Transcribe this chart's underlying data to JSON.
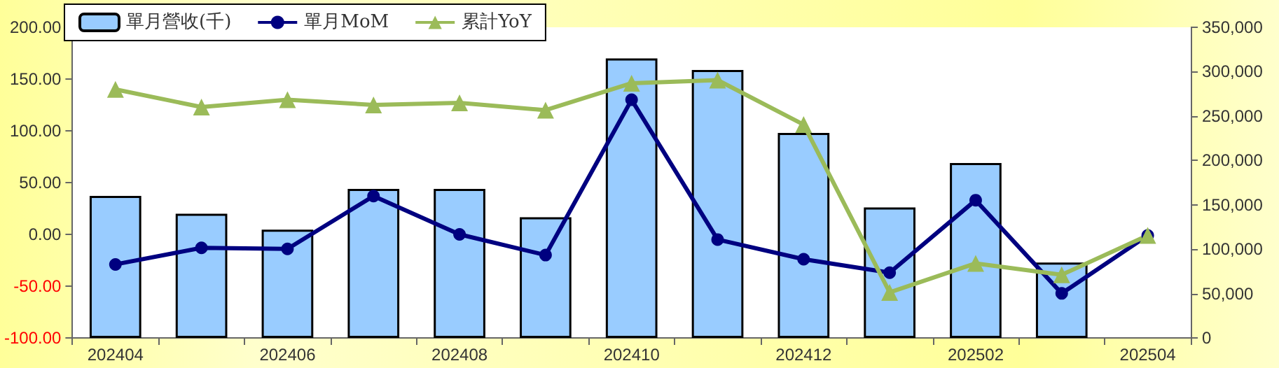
{
  "chart_data": {
    "type": "bar",
    "categories": [
      "202404",
      null,
      "202406",
      null,
      "202408",
      null,
      "202410",
      null,
      "202412",
      null,
      "202502",
      null,
      "202504"
    ],
    "series": [
      {
        "name": "單月營收(千)",
        "axis": "y2",
        "color": "#99ccff",
        "values": [
          160000,
          140000,
          122000,
          168000,
          168000,
          136000,
          315000,
          302000,
          231000,
          147000,
          197000,
          85000,
          null
        ]
      },
      {
        "name": "單月MoM",
        "type": "line",
        "color": "#000080",
        "marker": "circle",
        "values": [
          -29,
          -13,
          -14,
          37,
          0,
          -20,
          130,
          -5,
          -24,
          -37,
          33,
          -57,
          -1
        ]
      },
      {
        "name": "累計YoY",
        "type": "line",
        "color": "#9bbb59",
        "marker": "triangle",
        "values": [
          140,
          123,
          130,
          125,
          127,
          120,
          146,
          149,
          106,
          -56,
          -28,
          -39,
          -1
        ]
      }
    ],
    "ylim": [
      -100,
      200
    ],
    "yticks": [
      {
        "value": -100,
        "label": "-100.00"
      },
      {
        "value": -50,
        "label": "-50.00"
      },
      {
        "value": 0,
        "label": "0.00"
      },
      {
        "value": 50,
        "label": "50.00"
      },
      {
        "value": 100,
        "label": "100.00"
      },
      {
        "value": 150,
        "label": "150.00"
      },
      {
        "value": 200,
        "label": "200.00"
      }
    ],
    "y2lim": [
      0,
      350000
    ],
    "y2ticks": [
      0,
      {
        "value": 50000,
        "label": "50,000"
      },
      {
        "value": 100000,
        "label": "100,000"
      },
      {
        "value": 150000,
        "label": "150,000"
      },
      {
        "value": 200000,
        "label": "200,000"
      },
      {
        "value": 250000,
        "label": "250,000"
      },
      {
        "value": 300000,
        "label": "300,000"
      },
      {
        "value": 350000,
        "label": "350,000"
      }
    ],
    "grid": false,
    "legend": "top left"
  }
}
